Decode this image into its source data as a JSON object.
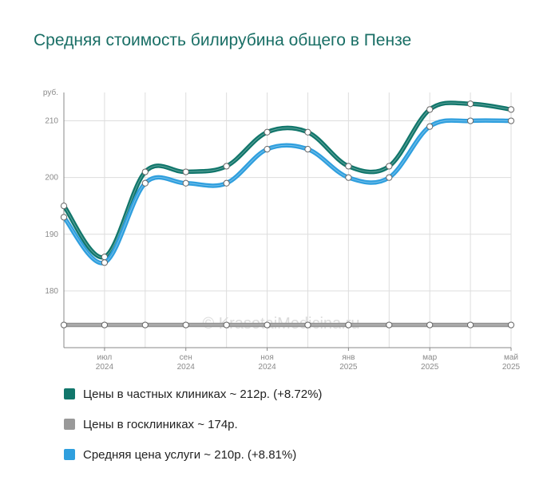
{
  "chart_data": {
    "type": "line",
    "title": "Средняя стоимость билирубина общего в Пензе",
    "yunit": "руб.",
    "ylim": [
      170,
      215
    ],
    "yticks": [
      180,
      190,
      200,
      210
    ],
    "grid": true,
    "legend_position": "bottom",
    "x_labels": [
      {
        "index": 1,
        "month": "июл",
        "year": "2024"
      },
      {
        "index": 3,
        "month": "сен",
        "year": "2024"
      },
      {
        "index": 5,
        "month": "ноя",
        "year": "2024"
      },
      {
        "index": 7,
        "month": "янв",
        "year": "2025"
      },
      {
        "index": 9,
        "month": "мар",
        "year": "2025"
      },
      {
        "index": 11,
        "month": "май",
        "year": "2025"
      }
    ],
    "x": [
      "2024-06",
      "2024-07",
      "2024-08",
      "2024-09",
      "2024-10",
      "2024-11",
      "2024-12",
      "2025-01",
      "2025-02",
      "2025-03",
      "2025-04",
      "2025-05"
    ],
    "series": [
      {
        "name": "Цены в частных клиниках ~ 212р. (+8.72%)",
        "color": "#11766b",
        "values": [
          195,
          186,
          201,
          201,
          202,
          208,
          208,
          202,
          202,
          212,
          213,
          212
        ]
      },
      {
        "name": "Цены в госклиниках ~ 174р.",
        "color": "#999999",
        "values": [
          174,
          174,
          174,
          174,
          174,
          174,
          174,
          174,
          174,
          174,
          174,
          174
        ]
      },
      {
        "name": "Средняя цена услуги ~ 210р. (+8.81%)",
        "color": "#2f9fde",
        "values": [
          193,
          185,
          199,
          199,
          199,
          205,
          205,
          200,
          200,
          209,
          210,
          210
        ]
      }
    ],
    "watermark": "© KrasotaiMedicina.ru"
  }
}
